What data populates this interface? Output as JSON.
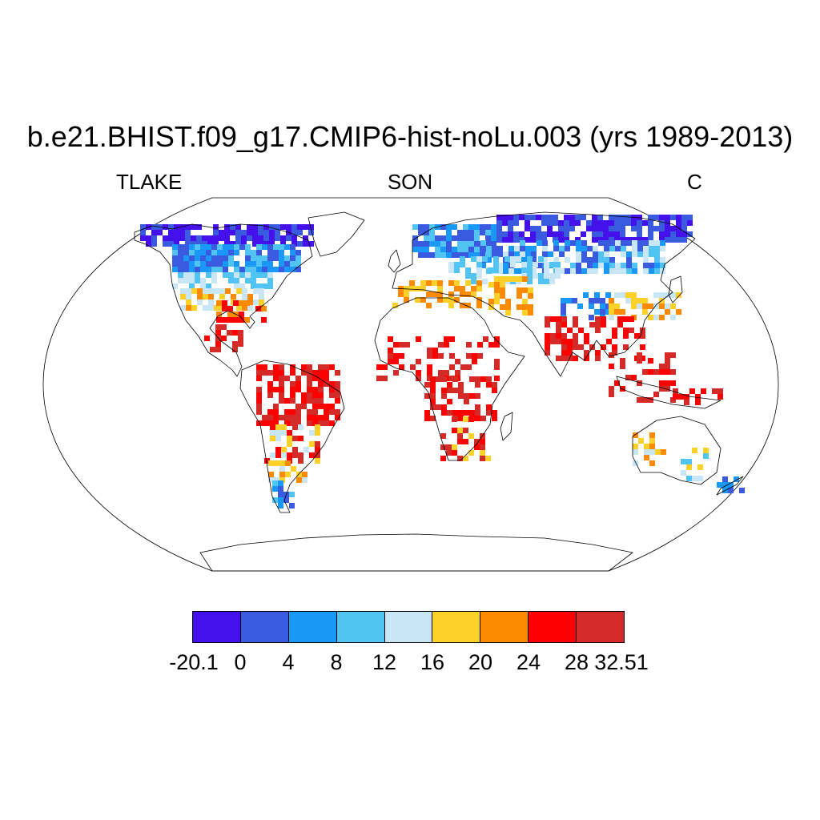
{
  "title": "b.e21.BHIST.f09_g17.CMIP6-hist-noLu.003 (yrs 1989-2013)",
  "subtitle_left": "TLAKE",
  "subtitle_center": "SON",
  "subtitle_right": "C",
  "colorbar": {
    "colors": [
      "#4410ec",
      "#3a5ae0",
      "#1a98f7",
      "#52c4f3",
      "#c8e6f6",
      "#fed12a",
      "#fd8a03",
      "#fd0000",
      "#d42b28"
    ],
    "labels": [
      "-20.1",
      "0",
      "4",
      "8",
      "12",
      "16",
      "20",
      "24",
      "28",
      "32.51"
    ]
  },
  "map": {
    "projection": "Robinson",
    "variable": "TLAKE",
    "season": "SON",
    "units": "C"
  }
}
